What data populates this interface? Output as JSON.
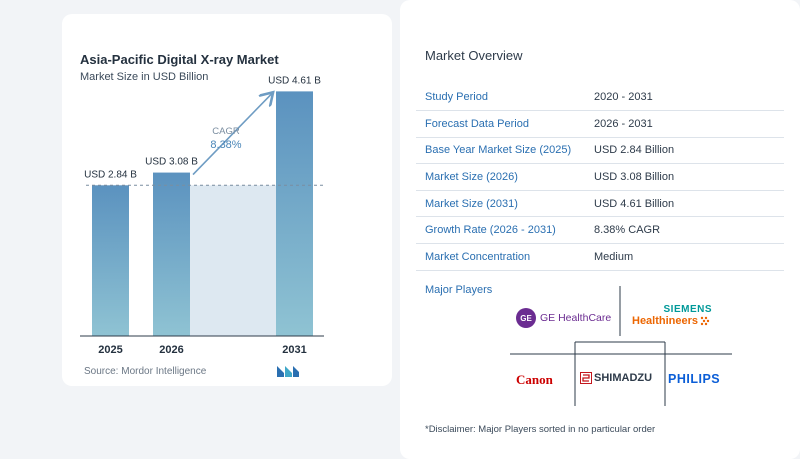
{
  "chart": {
    "title": "Asia-Pacific Digital X-ray Market",
    "subtitle": "Market Size in USD Billion",
    "cagr_label": "CAGR",
    "cagr_value": "8.38%",
    "source": "Source:  Mordor Intelligence"
  },
  "chart_data": {
    "type": "bar",
    "title": "Asia-Pacific Digital X-ray Market",
    "subtitle": "Market Size in USD Billion",
    "categories": [
      "2025",
      "2026",
      "2031"
    ],
    "values": [
      2.84,
      3.08,
      4.61
    ],
    "data_labels": [
      "USD 2.84 B",
      "USD 3.08 B",
      "USD 4.61 B"
    ],
    "ylim": [
      0,
      4.9
    ],
    "reference_line": 2.84,
    "annotation": "CAGR 8.38%",
    "colors": {
      "bar_top": "#5b92bf",
      "bar_bottom": "#8fc3d3",
      "band": "#dde8f1",
      "arrow": "#6e9cc3"
    }
  },
  "overview": {
    "title": "Market Overview",
    "rows": [
      {
        "key": "Study Period",
        "value": "2020 - 2031"
      },
      {
        "key": "Forecast Data Period",
        "value": "2026 - 2031"
      },
      {
        "key": "Base Year Market Size (2025)",
        "value": "USD 2.84 Billion"
      },
      {
        "key": "Market Size (2026)",
        "value": "USD 3.08 Billion"
      },
      {
        "key": "Market Size (2031)",
        "value": "USD 4.61 Billion"
      },
      {
        "key": "Growth Rate (2026 - 2031)",
        "value": "8.38% CAGR"
      },
      {
        "key": "Market Concentration",
        "value": "Medium"
      }
    ],
    "players_label": "Major Players",
    "players": {
      "ge": "GE HealthCare",
      "ge_mark": "GE",
      "siemens_top": "SIEMENS",
      "siemens_bottom": "Healthineers",
      "canon": "Canon",
      "shimadzu": "SHIMADZU",
      "philips": "PHILIPS"
    },
    "disclaimer": "*Disclaimer: Major Players sorted in no particular order"
  }
}
